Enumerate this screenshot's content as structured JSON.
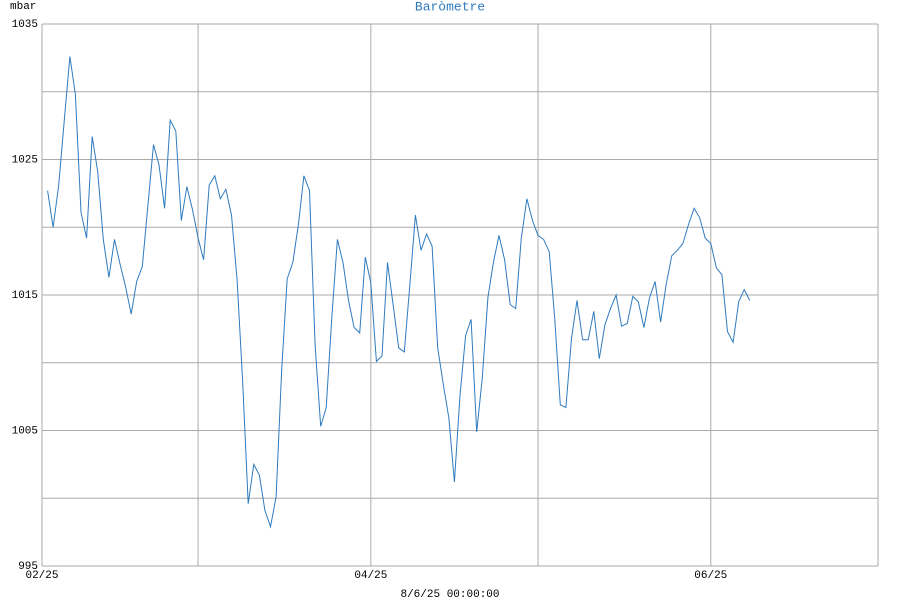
{
  "chart_data": {
    "type": "line",
    "title": "Baròmetre",
    "ylabel": "mbar",
    "xlabel": "8/6/25 00:00:00",
    "x": [
      1,
      2,
      3,
      4,
      5,
      6,
      7,
      8,
      9,
      10,
      11,
      12,
      13,
      14,
      15,
      16,
      17,
      18,
      19,
      20,
      21,
      22,
      23,
      24,
      25,
      26,
      27,
      28,
      29,
      30,
      31,
      32,
      33,
      34,
      35,
      36,
      37,
      38,
      39,
      40,
      41,
      42,
      43,
      44,
      45,
      46,
      47,
      48,
      49,
      50,
      51,
      52,
      53,
      54,
      55,
      56,
      57,
      58,
      59,
      60,
      61,
      62,
      63,
      64,
      65,
      66,
      67,
      68,
      69,
      70,
      71,
      72,
      73,
      74,
      75,
      76,
      77,
      78,
      79,
      80,
      81,
      82,
      83,
      84,
      85,
      86,
      87,
      88,
      89,
      90,
      91,
      92,
      93,
      94,
      95,
      96,
      97,
      98,
      99,
      100,
      101,
      102,
      103,
      104,
      105,
      106,
      107,
      108,
      109,
      110,
      111,
      112,
      113,
      114,
      115,
      116,
      117,
      118,
      119,
      120,
      121,
      122,
      123,
      124,
      125,
      126,
      127
    ],
    "series": [
      {
        "name": "mbar",
        "color": "#2f7bbf",
        "values": [
          1022.7,
          1020.0,
          1023.1,
          1027.9,
          1032.6,
          1029.8,
          1021.1,
          1019.2,
          1026.7,
          1024.1,
          1019.1,
          1016.3,
          1019.1,
          1017.3,
          1015.6,
          1013.6,
          1016.0,
          1017.1,
          1021.6,
          1026.1,
          1024.6,
          1021.4,
          1027.9,
          1027.1,
          1020.5,
          1023.0,
          1021.3,
          1019.2,
          1017.6,
          1023.1,
          1023.8,
          1022.1,
          1022.8,
          1020.9,
          1016.1,
          1008.7,
          999.6,
          1002.5,
          1001.7,
          999.1,
          997.9,
          1000.1,
          1009.5,
          1016.2,
          1017.4,
          1020.2,
          1023.8,
          1022.7,
          1011.3,
          1005.3,
          1006.7,
          1013.3,
          1019.1,
          1017.4,
          1014.6,
          1012.6,
          1012.2,
          1017.8,
          1015.9,
          1010.1,
          1010.5,
          1017.4,
          1014.3,
          1011.1,
          1010.8,
          1015.7,
          1020.9,
          1018.3,
          1019.5,
          1018.6,
          1011.1,
          1008.4,
          1005.9,
          1001.2,
          1007.6,
          1012.0,
          1013.2,
          1004.9,
          1008.9,
          1014.8,
          1017.4,
          1019.4,
          1017.6,
          1014.3,
          1014.0,
          1019.2,
          1022.1,
          1020.5,
          1019.4,
          1019.1,
          1018.2,
          1013.3,
          1006.9,
          1006.7,
          1011.8,
          1014.6,
          1011.7,
          1011.7,
          1013.8,
          1010.3,
          1012.8,
          1014.0,
          1015.0,
          1012.7,
          1012.9,
          1014.9,
          1014.5,
          1012.6,
          1014.8,
          1016.0,
          1013.0,
          1015.8,
          1017.9,
          1018.3,
          1018.8,
          1020.2,
          1021.4,
          1020.7,
          1019.2,
          1018.8,
          1017.0,
          1016.5,
          1012.3,
          1011.5,
          1014.5,
          1015.4,
          1014.6
        ]
      }
    ],
    "xlim": [
      0,
      150
    ],
    "xticks": [
      {
        "value": 0,
        "label": "02/25"
      },
      {
        "value": 28,
        "label": null
      },
      {
        "value": 59,
        "label": "04/25"
      },
      {
        "value": 89,
        "label": null
      },
      {
        "value": 120,
        "label": "06/25"
      },
      {
        "value": 150,
        "label": null
      }
    ],
    "ylim": [
      995,
      1035
    ],
    "yticks": [
      995,
      {
        "value": 1000,
        "label": null
      },
      1005,
      {
        "value": 1010,
        "label": null
      },
      1015,
      {
        "value": 1020,
        "label": null
      },
      1025,
      {
        "value": 1030,
        "label": null
      },
      1035
    ],
    "grid": true
  }
}
